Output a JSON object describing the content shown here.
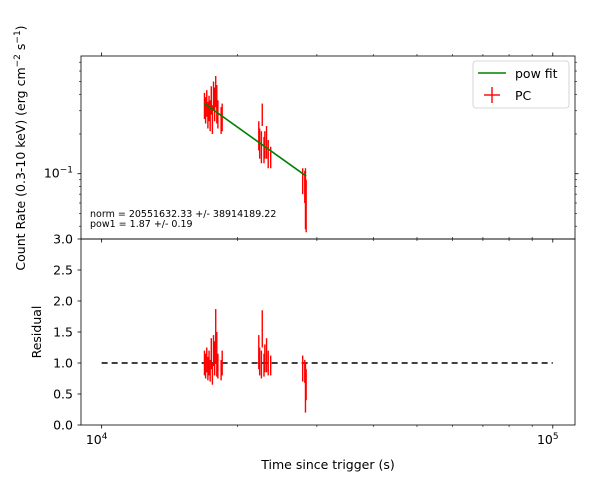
{
  "chart_data": [
    {
      "type": "scatter",
      "panel": "top",
      "xscale": "log",
      "yscale": "log",
      "xlim": [
        9000,
        112000
      ],
      "ylim": [
        0.032,
        0.78
      ],
      "ylabel_parts": [
        "Count Rate (0.3-10 keV) (erg cm",
        "−2",
        " s",
        "−1",
        ")"
      ],
      "ytick_label_main": "10",
      "ytick_label_exp": "−1",
      "ytick_value": 0.1,
      "legend_position": "upper right",
      "legend": [
        {
          "label": "pow fit",
          "kind": "line",
          "color": "#008000"
        },
        {
          "label": "PC",
          "kind": "errorbar",
          "color": "#ff0000"
        }
      ],
      "annotations": [
        "norm = 20551632.33 +/- 38914189.22",
        "pow1 = 1.87 +/- 0.19"
      ],
      "fit_line": {
        "name": "pow fit",
        "x": [
          16900,
          28400
        ],
        "y": [
          0.34,
          0.096
        ]
      },
      "series": [
        {
          "name": "PC",
          "points": [
            {
              "x": 16900,
              "y": 0.33,
              "ylo": 0.26,
              "yhi": 0.41,
              "xerr": 40
            },
            {
              "x": 17000,
              "y": 0.3,
              "ylo": 0.24,
              "yhi": 0.38,
              "xerr": 40
            },
            {
              "x": 17100,
              "y": 0.34,
              "ylo": 0.27,
              "yhi": 0.43,
              "xerr": 40
            },
            {
              "x": 17200,
              "y": 0.28,
              "ylo": 0.22,
              "yhi": 0.35,
              "xerr": 40
            },
            {
              "x": 17300,
              "y": 0.31,
              "ylo": 0.25,
              "yhi": 0.39,
              "xerr": 40
            },
            {
              "x": 17400,
              "y": 0.27,
              "ylo": 0.21,
              "yhi": 0.36,
              "xerr": 40
            },
            {
              "x": 17500,
              "y": 0.36,
              "ylo": 0.28,
              "yhi": 0.46,
              "xerr": 40
            },
            {
              "x": 17600,
              "y": 0.25,
              "ylo": 0.2,
              "yhi": 0.33,
              "xerr": 40
            },
            {
              "x": 17700,
              "y": 0.38,
              "ylo": 0.3,
              "yhi": 0.5,
              "xerr": 40
            },
            {
              "x": 17800,
              "y": 0.33,
              "ylo": 0.25,
              "yhi": 0.45,
              "xerr": 40
            },
            {
              "x": 17900,
              "y": 0.43,
              "ylo": 0.32,
              "yhi": 0.55,
              "xerr": 40
            },
            {
              "x": 18000,
              "y": 0.32,
              "ylo": 0.24,
              "yhi": 0.47,
              "xerr": 40
            },
            {
              "x": 18100,
              "y": 0.28,
              "ylo": 0.22,
              "yhi": 0.36,
              "xerr": 40
            },
            {
              "x": 18400,
              "y": 0.25,
              "ylo": 0.2,
              "yhi": 0.32,
              "xerr": 40
            },
            {
              "x": 18500,
              "y": 0.27,
              "ylo": 0.21,
              "yhi": 0.34,
              "xerr": 40
            },
            {
              "x": 22300,
              "y": 0.19,
              "ylo": 0.15,
              "yhi": 0.25,
              "xerr": 40
            },
            {
              "x": 22400,
              "y": 0.17,
              "ylo": 0.13,
              "yhi": 0.22,
              "xerr": 40
            },
            {
              "x": 22600,
              "y": 0.16,
              "ylo": 0.12,
              "yhi": 0.21,
              "xerr": 40
            },
            {
              "x": 22700,
              "y": 0.28,
              "ylo": 0.23,
              "yhi": 0.34,
              "xerr": 40
            },
            {
              "x": 22900,
              "y": 0.15,
              "ylo": 0.12,
              "yhi": 0.19,
              "xerr": 40
            },
            {
              "x": 23000,
              "y": 0.16,
              "ylo": 0.13,
              "yhi": 0.21,
              "xerr": 40
            },
            {
              "x": 23200,
              "y": 0.17,
              "ylo": 0.13,
              "yhi": 0.23,
              "xerr": 40
            },
            {
              "x": 23400,
              "y": 0.14,
              "ylo": 0.11,
              "yhi": 0.18,
              "xerr": 40
            },
            {
              "x": 23700,
              "y": 0.13,
              "ylo": 0.11,
              "yhi": 0.16,
              "xerr": 40
            },
            {
              "x": 27900,
              "y": 0.095,
              "ylo": 0.07,
              "yhi": 0.11,
              "xerr": 40
            },
            {
              "x": 28200,
              "y": 0.085,
              "ylo": 0.06,
              "yhi": 0.105,
              "xerr": 40
            },
            {
              "x": 28300,
              "y": 0.09,
              "ylo": 0.038,
              "yhi": 0.11,
              "xerr": 40
            },
            {
              "x": 28400,
              "y": 0.07,
              "ylo": 0.036,
              "yhi": 0.09,
              "xerr": 40
            }
          ]
        }
      ]
    },
    {
      "type": "scatter",
      "panel": "bottom",
      "xscale": "log",
      "yscale": "linear",
      "xlim": [
        9000,
        112000
      ],
      "ylim": [
        0,
        3.0
      ],
      "xlabel": "Time since trigger (s)",
      "ylabel": "Residual",
      "yticks": [
        0.0,
        0.5,
        1.0,
        1.5,
        2.0,
        2.5,
        3.0
      ],
      "ytick_labels": [
        "0.0",
        "0.5",
        "1.0",
        "1.5",
        "2.0",
        "2.5",
        "3.0"
      ],
      "xticks": [
        {
          "value": 10000,
          "main": "10",
          "exp": "4"
        },
        {
          "value": 100000,
          "main": "10",
          "exp": "5"
        }
      ],
      "reference_line": {
        "y": 1.0,
        "x": [
          10000,
          100000
        ],
        "style": "dashed",
        "color": "#000000"
      },
      "series": [
        {
          "name": "PC",
          "points": [
            {
              "x": 16900,
              "y": 1.0,
              "ylo": 0.8,
              "yhi": 1.2
            },
            {
              "x": 17000,
              "y": 0.95,
              "ylo": 0.75,
              "yhi": 1.15
            },
            {
              "x": 17100,
              "y": 1.05,
              "ylo": 0.85,
              "yhi": 1.25
            },
            {
              "x": 17200,
              "y": 0.92,
              "ylo": 0.72,
              "yhi": 1.1
            },
            {
              "x": 17300,
              "y": 1.0,
              "ylo": 0.8,
              "yhi": 1.2
            },
            {
              "x": 17400,
              "y": 0.85,
              "ylo": 0.7,
              "yhi": 1.05
            },
            {
              "x": 17500,
              "y": 1.15,
              "ylo": 0.9,
              "yhi": 1.4
            },
            {
              "x": 17600,
              "y": 0.82,
              "ylo": 0.65,
              "yhi": 1.0
            },
            {
              "x": 17700,
              "y": 1.2,
              "ylo": 0.95,
              "yhi": 1.45
            },
            {
              "x": 17800,
              "y": 1.05,
              "ylo": 0.8,
              "yhi": 1.35
            },
            {
              "x": 17900,
              "y": 1.4,
              "ylo": 1.0,
              "yhi": 1.87
            },
            {
              "x": 18000,
              "y": 1.05,
              "ylo": 0.78,
              "yhi": 1.5
            },
            {
              "x": 18100,
              "y": 0.95,
              "ylo": 0.75,
              "yhi": 1.15
            },
            {
              "x": 18400,
              "y": 0.88,
              "ylo": 0.72,
              "yhi": 1.05
            },
            {
              "x": 18500,
              "y": 1.0,
              "ylo": 0.8,
              "yhi": 1.2
            },
            {
              "x": 22300,
              "y": 1.15,
              "ylo": 0.9,
              "yhi": 1.45
            },
            {
              "x": 22400,
              "y": 1.0,
              "ylo": 0.8,
              "yhi": 1.25
            },
            {
              "x": 22600,
              "y": 0.95,
              "ylo": 0.75,
              "yhi": 1.2
            },
            {
              "x": 22700,
              "y": 1.55,
              "ylo": 1.25,
              "yhi": 1.85
            },
            {
              "x": 22900,
              "y": 0.95,
              "ylo": 0.78,
              "yhi": 1.15
            },
            {
              "x": 23000,
              "y": 1.05,
              "ylo": 0.85,
              "yhi": 1.3
            },
            {
              "x": 23200,
              "y": 1.1,
              "ylo": 0.85,
              "yhi": 1.4
            },
            {
              "x": 23400,
              "y": 0.98,
              "ylo": 0.8,
              "yhi": 1.2
            },
            {
              "x": 23700,
              "y": 0.95,
              "ylo": 0.8,
              "yhi": 1.12
            },
            {
              "x": 27900,
              "y": 0.95,
              "ylo": 0.7,
              "yhi": 1.12
            },
            {
              "x": 28200,
              "y": 0.88,
              "ylo": 0.68,
              "yhi": 1.05
            },
            {
              "x": 28300,
              "y": 0.9,
              "ylo": 0.2,
              "yhi": 1.0
            },
            {
              "x": 28400,
              "y": 0.7,
              "ylo": 0.4,
              "yhi": 0.9
            }
          ]
        }
      ]
    }
  ]
}
